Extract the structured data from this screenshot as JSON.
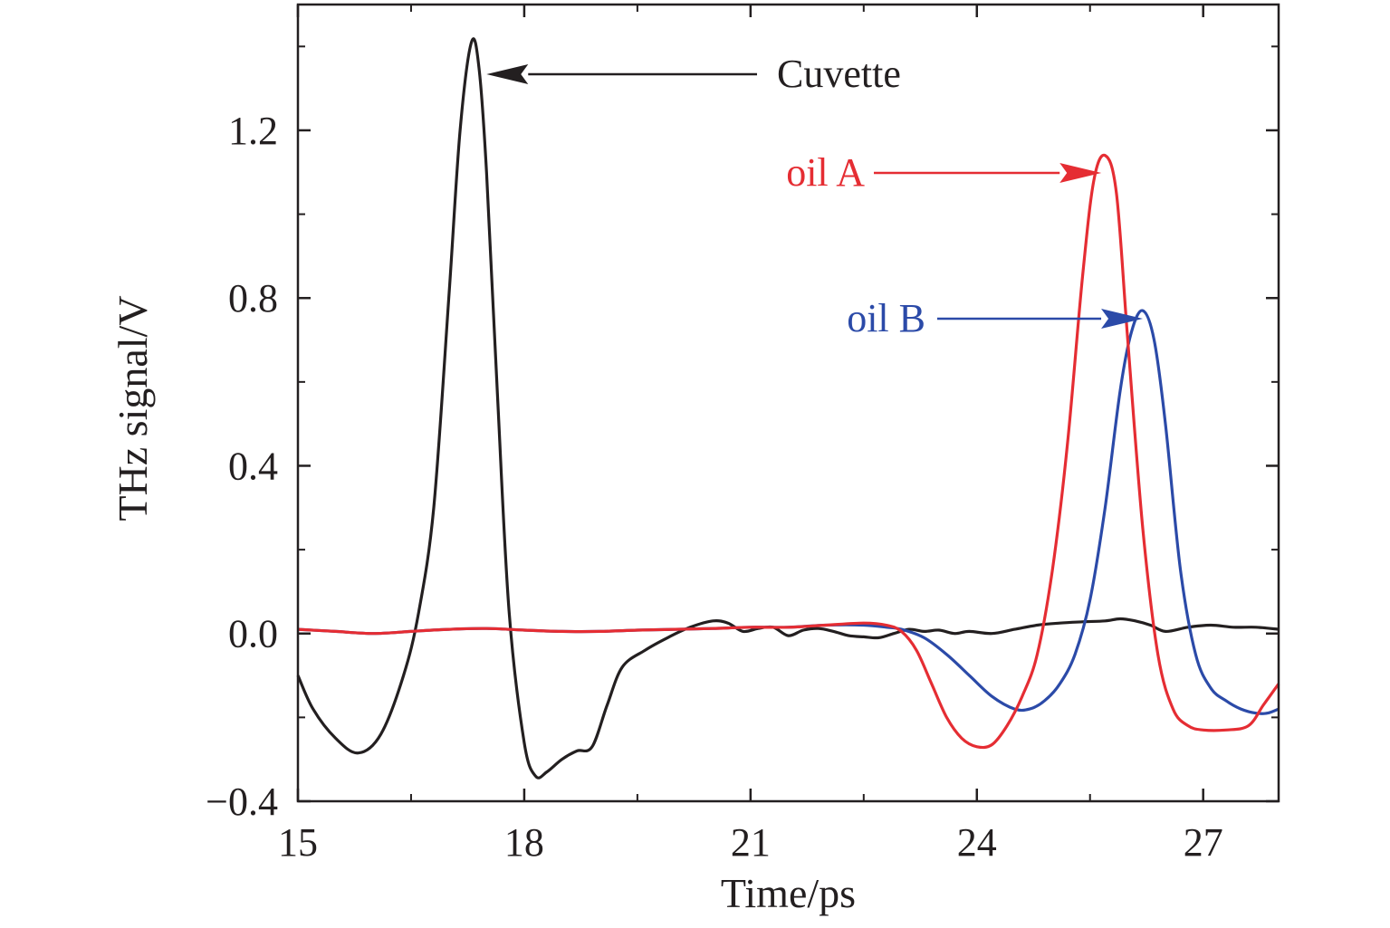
{
  "chart_data": {
    "type": "line",
    "xlabel": "Time/ps",
    "ylabel": "THz signal/V",
    "xlim": [
      15,
      28
    ],
    "ylim": [
      -0.4,
      1.5
    ],
    "xticks": [
      {
        "value": 15,
        "label": "15"
      },
      {
        "value": 18,
        "label": "18"
      },
      {
        "value": 21,
        "label": "21"
      },
      {
        "value": 24,
        "label": "24"
      },
      {
        "value": 27,
        "label": "27"
      }
    ],
    "yticks": [
      {
        "value": -0.4,
        "label": "−0.4"
      },
      {
        "value": 0.0,
        "label": "0.0"
      },
      {
        "value": 0.4,
        "label": "0.4"
      },
      {
        "value": 0.8,
        "label": "0.8"
      },
      {
        "value": 1.2,
        "label": "1.2"
      }
    ],
    "grid": false,
    "series": [
      {
        "name": "Cuvette",
        "color": "#231f20",
        "x": [
          15.0,
          15.2,
          15.5,
          15.8,
          16.1,
          16.4,
          16.6,
          16.8,
          17.0,
          17.15,
          17.3,
          17.4,
          17.5,
          17.65,
          17.8,
          18.0,
          18.15,
          18.3,
          18.5,
          18.7,
          18.9,
          19.1,
          19.3,
          19.6,
          19.9,
          20.2,
          20.5,
          20.7,
          20.9,
          21.1,
          21.3,
          21.5,
          21.7,
          21.9,
          22.1,
          22.3,
          22.5,
          22.7,
          22.9,
          23.1,
          23.3,
          23.5,
          23.7,
          23.9,
          24.2,
          24.5,
          24.8,
          25.1,
          25.4,
          25.7,
          25.9,
          26.1,
          26.3,
          26.5,
          26.8,
          27.1,
          27.4,
          27.7,
          28.0
        ],
        "y": [
          -0.1,
          -0.18,
          -0.25,
          -0.285,
          -0.24,
          -0.1,
          0.05,
          0.3,
          0.8,
          1.2,
          1.41,
          1.35,
          1.1,
          0.55,
          0.05,
          -0.26,
          -0.34,
          -0.33,
          -0.3,
          -0.28,
          -0.27,
          -0.17,
          -0.08,
          -0.04,
          -0.01,
          0.015,
          0.03,
          0.025,
          0.005,
          0.012,
          0.015,
          -0.005,
          0.008,
          0.012,
          0.005,
          -0.005,
          -0.008,
          -0.01,
          0.0,
          0.01,
          0.005,
          0.008,
          0.0,
          0.005,
          0.0,
          0.01,
          0.02,
          0.025,
          0.028,
          0.03,
          0.035,
          0.03,
          0.02,
          0.005,
          0.015,
          0.02,
          0.015,
          0.015,
          0.01
        ]
      },
      {
        "name": "oil A",
        "color": "#e52d33",
        "x": [
          15.0,
          15.5,
          16.0,
          16.5,
          17.0,
          17.5,
          18.0,
          18.5,
          19.0,
          19.5,
          20.0,
          20.5,
          21.0,
          21.5,
          22.0,
          22.5,
          22.8,
          23.0,
          23.2,
          23.4,
          23.6,
          23.8,
          24.0,
          24.2,
          24.4,
          24.6,
          24.8,
          25.0,
          25.2,
          25.4,
          25.55,
          25.7,
          25.85,
          26.0,
          26.2,
          26.4,
          26.6,
          26.8,
          27.0,
          27.3,
          27.6,
          27.8,
          28.0
        ],
        "y": [
          0.01,
          0.005,
          0.0,
          0.005,
          0.01,
          0.012,
          0.008,
          0.005,
          0.005,
          0.008,
          0.01,
          0.012,
          0.015,
          0.015,
          0.02,
          0.025,
          0.02,
          0.005,
          -0.04,
          -0.12,
          -0.2,
          -0.25,
          -0.27,
          -0.265,
          -0.22,
          -0.15,
          -0.05,
          0.15,
          0.45,
          0.85,
          1.08,
          1.14,
          1.05,
          0.7,
          0.25,
          -0.05,
          -0.18,
          -0.22,
          -0.23,
          -0.23,
          -0.22,
          -0.17,
          -0.12
        ]
      },
      {
        "name": "oil B",
        "color": "#2b4aa8",
        "x": [
          15.0,
          15.5,
          16.0,
          16.5,
          17.0,
          17.5,
          18.0,
          18.5,
          19.0,
          19.5,
          20.0,
          20.5,
          21.0,
          21.5,
          22.0,
          22.5,
          22.8,
          23.0,
          23.3,
          23.6,
          23.9,
          24.2,
          24.5,
          24.7,
          24.9,
          25.1,
          25.3,
          25.5,
          25.7,
          25.9,
          26.05,
          26.2,
          26.35,
          26.5,
          26.7,
          26.9,
          27.1,
          27.3,
          27.5,
          27.7,
          27.85,
          28.0
        ],
        "y": [
          0.01,
          0.005,
          0.0,
          0.005,
          0.01,
          0.012,
          0.008,
          0.005,
          0.005,
          0.008,
          0.01,
          0.012,
          0.015,
          0.015,
          0.02,
          0.02,
          0.015,
          0.01,
          -0.01,
          -0.05,
          -0.1,
          -0.15,
          -0.18,
          -0.18,
          -0.16,
          -0.12,
          -0.05,
          0.08,
          0.3,
          0.58,
          0.72,
          0.77,
          0.7,
          0.5,
          0.15,
          -0.05,
          -0.13,
          -0.16,
          -0.18,
          -0.19,
          -0.19,
          -0.18
        ]
      }
    ],
    "annotations": [
      {
        "text": "Cuvette",
        "color": "#231f20",
        "points_to": {
          "x": 17.5,
          "y": 1.32
        }
      },
      {
        "text": "oil A",
        "color": "#e52d33",
        "points_to": {
          "x": 25.65,
          "y": 1.08
        }
      },
      {
        "text": "oil B",
        "color": "#2b4aa8",
        "points_to": {
          "x": 26.2,
          "y": 0.74
        }
      }
    ]
  }
}
